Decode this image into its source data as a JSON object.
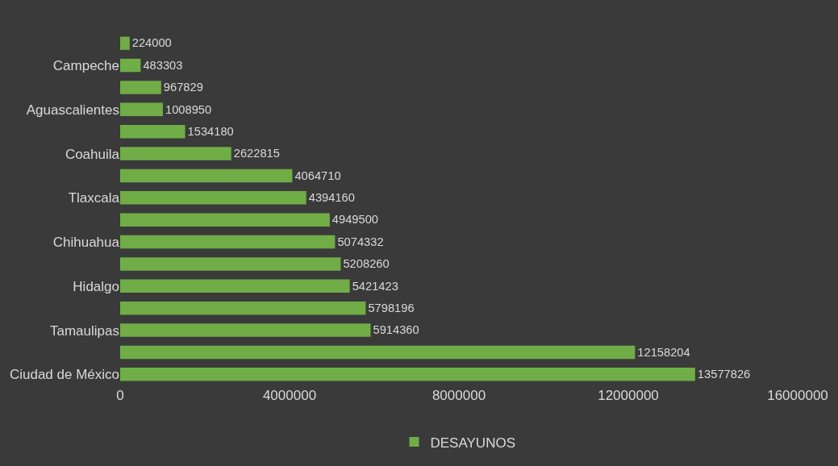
{
  "chart_data": {
    "type": "bar",
    "orientation": "horizontal",
    "categories": [
      null,
      "Campeche",
      null,
      "Aguascalientes",
      null,
      "Coahuila",
      null,
      "Tlaxcala",
      null,
      "Chihuahua",
      null,
      "Hidalgo",
      null,
      "Tamaulipas",
      null,
      "Ciudad de México"
    ],
    "series": [
      {
        "name": "DESAYUNOS",
        "color": "#70ad47",
        "values": [
          224000,
          483303,
          967829,
          1008950,
          1534180,
          2622815,
          4064710,
          4394160,
          4949500,
          5074332,
          5208260,
          5421423,
          5798196,
          5914360,
          12158204,
          13577826
        ]
      }
    ],
    "xlim": [
      0,
      16000000
    ],
    "xticks": [
      0,
      4000000,
      8000000,
      12000000,
      16000000
    ],
    "data_labels": true,
    "grid": false,
    "legend": "bottom"
  }
}
